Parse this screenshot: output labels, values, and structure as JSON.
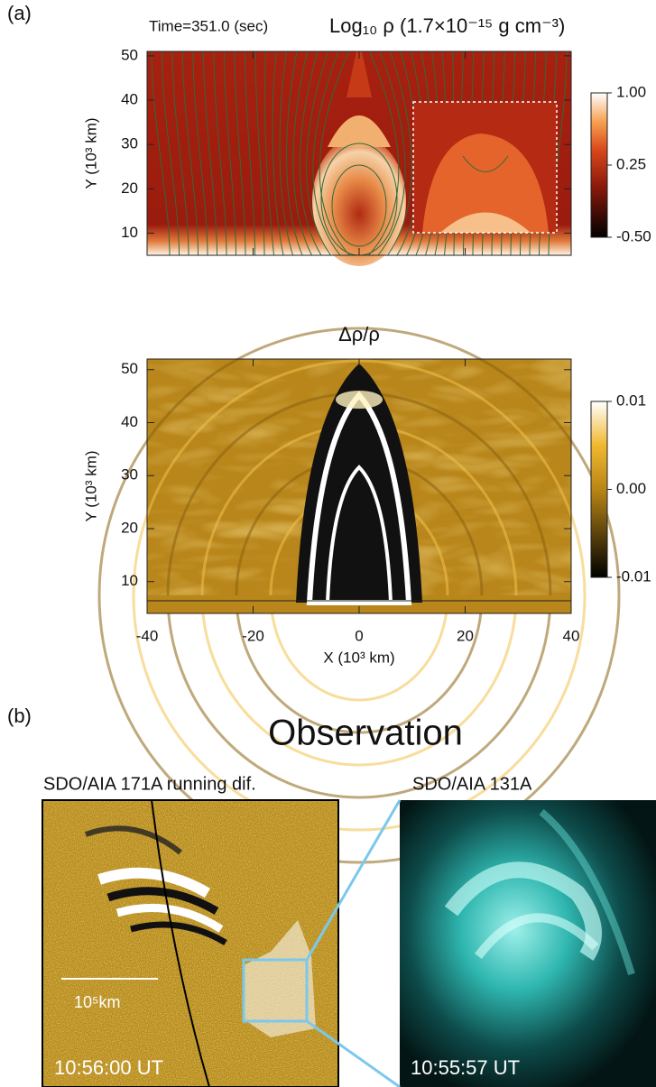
{
  "panel_a_label": "(a)",
  "chart_data": [
    {
      "type": "heatmap",
      "subtitle": "Time=351.0 (sec)",
      "title": "Log₁₀ ρ (1.7×10⁻¹⁵ g cm⁻³)",
      "y_label": "Y (10³ km)",
      "xlim": [
        -40,
        40
      ],
      "xticks": [
        -40,
        -20,
        0,
        20,
        40
      ],
      "ylim": [
        5,
        51
      ],
      "yticks": [
        10,
        20,
        30,
        40,
        50
      ],
      "colormap": "red",
      "inset": true,
      "colorbar": {
        "lim": [
          -0.5,
          1.0
        ],
        "ticks": [
          {
            "value": 1.0,
            "label": "1.00"
          },
          0.25,
          {
            "value": -0.5,
            "label": "-0.50"
          }
        ]
      }
    },
    {
      "type": "heatmap",
      "title": "Δρ/ρ",
      "x_label": "X (10³ km)",
      "y_label": "Y (10³ km)",
      "xlim": [
        -40,
        40
      ],
      "xticks": [
        -40,
        -20,
        0,
        20,
        40
      ],
      "ylim": [
        4,
        52
      ],
      "yticks": [
        10,
        20,
        30,
        40,
        50
      ],
      "colormap": "gold",
      "inset": false,
      "colorbar": {
        "lim": [
          -0.01,
          0.01
        ],
        "ticks": [
          0.01,
          {
            "value": 0,
            "label": "0.00"
          },
          -0.01
        ]
      }
    }
  ],
  "observation": {
    "panel_label": "(b)",
    "heading": "Observation",
    "images": [
      {
        "title": "SDO/AIA 171A running dif.",
        "timestamp": "10:56:00 UT",
        "scale_label": "10⁵km"
      },
      {
        "title": "SDO/AIA 131A",
        "timestamp": "10:55:57 UT"
      }
    ]
  }
}
